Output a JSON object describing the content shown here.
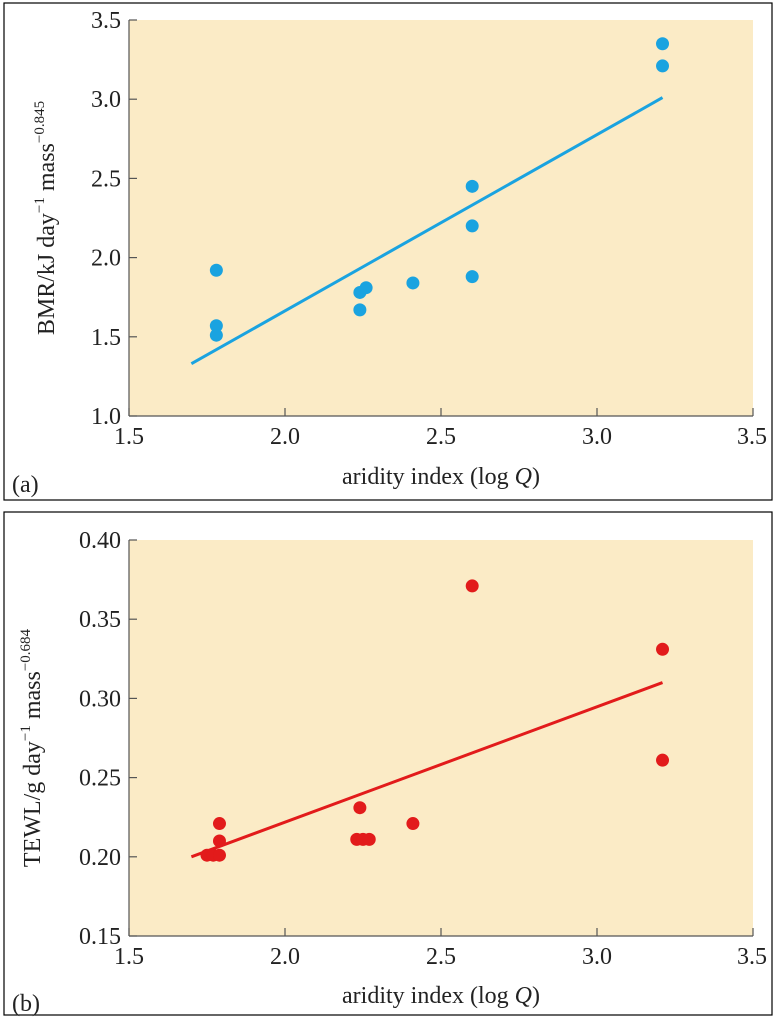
{
  "chart_data": [
    {
      "panel_label": "(a)",
      "type": "scatter",
      "xlabel_text": "aridity index (log ",
      "xlabel_var": "Q",
      "xlabel_close": ")",
      "ylabel": {
        "part1": "BMR/kJ day",
        "sup1": "−1",
        "part2": " mass",
        "sup2": "−0.845"
      },
      "xlim": [
        1.5,
        3.5
      ],
      "ylim": [
        1.0,
        3.5
      ],
      "xticks": [
        "1.5",
        "2.0",
        "2.5",
        "3.0",
        "3.5"
      ],
      "yticks": [
        "1.0",
        "1.5",
        "2.0",
        "2.5",
        "3.0",
        "3.5"
      ],
      "color": "#1aa3e0",
      "points": [
        {
          "x": 1.78,
          "y": 1.92
        },
        {
          "x": 1.78,
          "y": 1.57
        },
        {
          "x": 1.78,
          "y": 1.51
        },
        {
          "x": 2.24,
          "y": 1.78
        },
        {
          "x": 2.26,
          "y": 1.81
        },
        {
          "x": 2.24,
          "y": 1.67
        },
        {
          "x": 2.41,
          "y": 1.84
        },
        {
          "x": 2.6,
          "y": 2.45
        },
        {
          "x": 2.6,
          "y": 2.2
        },
        {
          "x": 2.6,
          "y": 1.88
        },
        {
          "x": 3.21,
          "y": 3.35
        },
        {
          "x": 3.21,
          "y": 3.21
        }
      ],
      "fit_line": [
        {
          "x": 1.7,
          "y": 1.33
        },
        {
          "x": 3.21,
          "y": 3.01
        }
      ]
    },
    {
      "panel_label": "(b)",
      "type": "scatter",
      "xlabel_text": "aridity index (log ",
      "xlabel_var": "Q",
      "xlabel_close": ")",
      "ylabel": {
        "part1": "TEWL/g day",
        "sup1": "−1",
        "part2": " mass",
        "sup2": "−0.684"
      },
      "xlim": [
        1.5,
        3.5
      ],
      "ylim": [
        0.15,
        0.4
      ],
      "xticks": [
        "1.5",
        "2.0",
        "2.5",
        "3.0",
        "3.5"
      ],
      "yticks": [
        "0.15",
        "0.20",
        "0.25",
        "0.30",
        "0.35",
        "0.40"
      ],
      "color": "#e21b1b",
      "points": [
        {
          "x": 1.75,
          "y": 0.201
        },
        {
          "x": 1.77,
          "y": 0.201
        },
        {
          "x": 1.79,
          "y": 0.201
        },
        {
          "x": 1.79,
          "y": 0.21
        },
        {
          "x": 1.79,
          "y": 0.221
        },
        {
          "x": 2.24,
          "y": 0.231
        },
        {
          "x": 2.23,
          "y": 0.211
        },
        {
          "x": 2.25,
          "y": 0.211
        },
        {
          "x": 2.27,
          "y": 0.211
        },
        {
          "x": 2.41,
          "y": 0.221
        },
        {
          "x": 2.6,
          "y": 0.371
        },
        {
          "x": 3.21,
          "y": 0.331
        },
        {
          "x": 3.21,
          "y": 0.261
        }
      ],
      "fit_line": [
        {
          "x": 1.7,
          "y": 0.2
        },
        {
          "x": 3.21,
          "y": 0.31
        }
      ]
    }
  ]
}
